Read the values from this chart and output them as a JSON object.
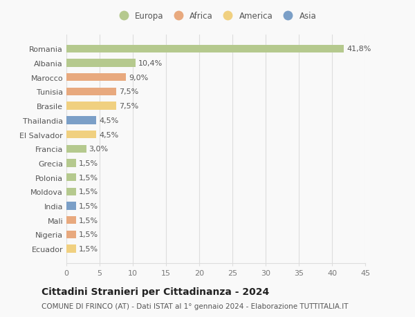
{
  "categories": [
    "Romania",
    "Albania",
    "Marocco",
    "Tunisia",
    "Brasile",
    "Thailandia",
    "El Salvador",
    "Francia",
    "Grecia",
    "Polonia",
    "Moldova",
    "India",
    "Mali",
    "Nigeria",
    "Ecuador"
  ],
  "values": [
    41.8,
    10.4,
    9.0,
    7.5,
    7.5,
    4.5,
    4.5,
    3.0,
    1.5,
    1.5,
    1.5,
    1.5,
    1.5,
    1.5,
    1.5
  ],
  "labels": [
    "41,8%",
    "10,4%",
    "9,0%",
    "7,5%",
    "7,5%",
    "4,5%",
    "4,5%",
    "3,0%",
    "1,5%",
    "1,5%",
    "1,5%",
    "1,5%",
    "1,5%",
    "1,5%",
    "1,5%"
  ],
  "continents": [
    "Europa",
    "Europa",
    "Africa",
    "Africa",
    "America",
    "Asia",
    "America",
    "Europa",
    "Europa",
    "Europa",
    "Europa",
    "Asia",
    "Africa",
    "Africa",
    "America"
  ],
  "colors": {
    "Europa": "#b5c98e",
    "Africa": "#e8a97e",
    "America": "#f0d080",
    "Asia": "#7b9fc7"
  },
  "title": "Cittadini Stranieri per Cittadinanza - 2024",
  "subtitle": "COMUNE DI FRINCO (AT) - Dati ISTAT al 1° gennaio 2024 - Elaborazione TUTTITALIA.IT",
  "xlim": [
    0,
    45
  ],
  "xticks": [
    0,
    5,
    10,
    15,
    20,
    25,
    30,
    35,
    40,
    45
  ],
  "background_color": "#f9f9f9",
  "grid_color": "#dddddd",
  "bar_height": 0.55,
  "title_fontsize": 10,
  "subtitle_fontsize": 7.5,
  "tick_fontsize": 8,
  "label_fontsize": 8,
  "legend_fontsize": 8.5
}
